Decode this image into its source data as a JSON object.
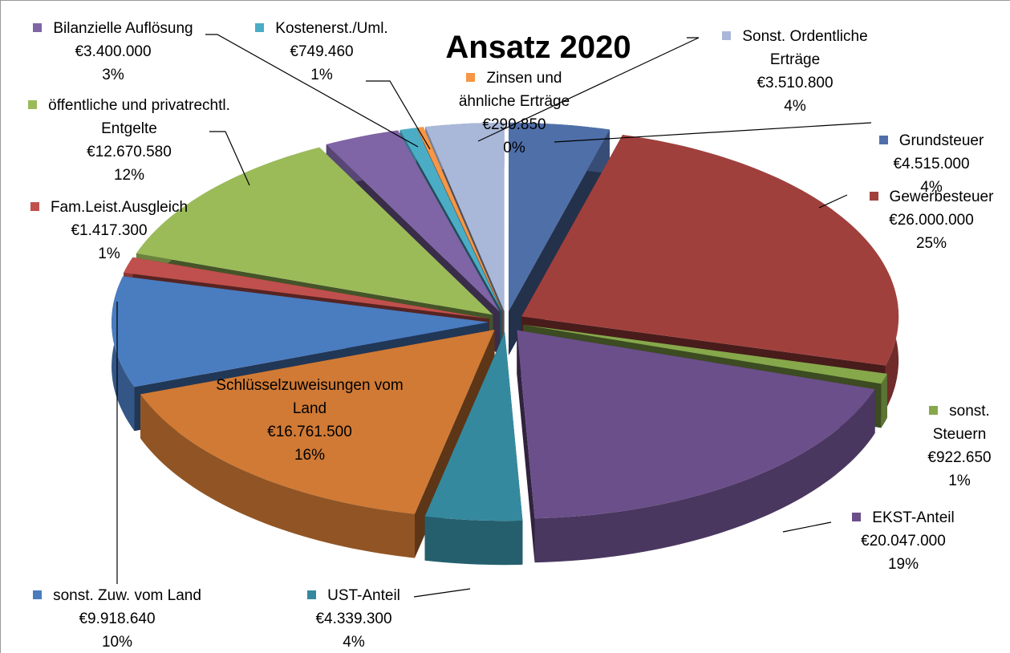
{
  "chart_data": {
    "type": "pie",
    "title": "Ansatz 2020",
    "categories": [
      "Grundsteuer",
      "Gewerbesteuer",
      "sonst. Steuern",
      "EKST-Anteil",
      "UST-Anteil",
      "Schlüsselzuweisungen vom Land",
      "sonst. Zuw. vom Land",
      "Fam.Leist.Ausgleich",
      "öffentliche und privatrechtl. Entgelte",
      "Bilanzielle Auflösung",
      "Kostenerst./Uml.",
      "Zinsen und ähnliche Erträge",
      "Sonst. Ordentliche Erträge"
    ],
    "values": [
      4515000,
      26000000,
      922650,
      20047000,
      4339300,
      16761500,
      9918640,
      1417300,
      12670580,
      3400000,
      749460,
      290850,
      3510800
    ],
    "value_labels": [
      "€4.515.000",
      "€26.000.000",
      "€922.650",
      "€20.047.000",
      "€4.339.300",
      "€16.761.500",
      "€9.918.640",
      "€1.417.300",
      "€12.670.580",
      "€3.400.000",
      "€749.460",
      "€290.850",
      "€3.510.800"
    ],
    "percent_labels": [
      "4%",
      "25%",
      "1%",
      "19%",
      "4%",
      "16%",
      "10%",
      "1%",
      "12%",
      "3%",
      "1%",
      "0%",
      "4%"
    ],
    "colors": [
      "#4f6fa8",
      "#a0403d",
      "#86a84b",
      "#6b4f8a",
      "#35899e",
      "#d07a35",
      "#4a7cc0",
      "#c0504d",
      "#9bbb59",
      "#7f64a6",
      "#4bacc6",
      "#f79646",
      "#a9b8d8"
    ]
  }
}
